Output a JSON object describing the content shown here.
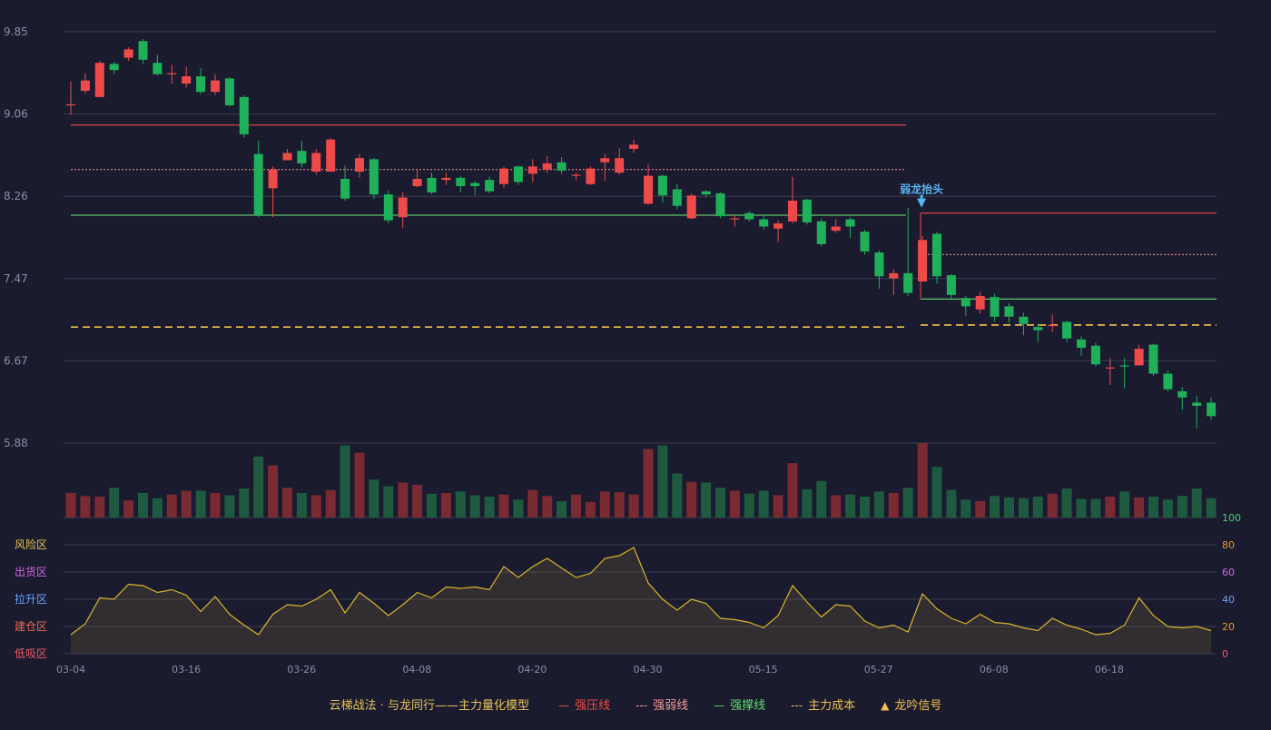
{
  "chart_data": {
    "type": "candlestick",
    "price_axis": {
      "ticks": [
        "9.85",
        "9.06",
        "8.26",
        "7.47",
        "6.67",
        "5.88"
      ],
      "min": 5.88,
      "max": 9.85
    },
    "x_axis": {
      "ticks": [
        "03-04",
        "03-16",
        "03-26",
        "04-08",
        "04-20",
        "04-30",
        "05-15",
        "05-27",
        "06-08",
        "06-18"
      ]
    },
    "candles": [
      [
        9.15,
        9.15,
        9.37,
        9.05
      ],
      [
        9.28,
        9.38,
        9.45,
        9.25
      ],
      [
        9.22,
        9.55,
        9.57,
        9.22
      ],
      [
        9.54,
        9.48,
        9.56,
        9.44
      ],
      [
        9.6,
        9.68,
        9.7,
        9.57
      ],
      [
        9.76,
        9.58,
        9.78,
        9.54
      ],
      [
        9.55,
        9.44,
        9.63,
        9.43
      ],
      [
        9.45,
        9.45,
        9.53,
        9.35
      ],
      [
        9.35,
        9.42,
        9.51,
        9.31
      ],
      [
        9.42,
        9.27,
        9.5,
        9.25
      ],
      [
        9.27,
        9.38,
        9.44,
        9.24
      ],
      [
        9.4,
        9.14,
        9.41,
        9.13
      ],
      [
        9.22,
        8.86,
        9.24,
        8.83
      ],
      [
        8.67,
        8.08,
        8.8,
        8.06
      ],
      [
        8.34,
        8.52,
        8.55,
        8.06
      ],
      [
        8.61,
        8.68,
        8.72,
        8.61
      ],
      [
        8.7,
        8.58,
        8.8,
        8.54
      ],
      [
        8.5,
        8.68,
        8.72,
        8.47
      ],
      [
        8.5,
        8.81,
        8.82,
        8.5
      ],
      [
        8.43,
        8.24,
        8.56,
        8.22
      ],
      [
        8.5,
        8.63,
        8.67,
        8.44
      ],
      [
        8.62,
        8.28,
        8.63,
        8.24
      ],
      [
        8.28,
        8.03,
        8.32,
        8.0
      ],
      [
        8.06,
        8.25,
        8.3,
        7.96
      ],
      [
        8.36,
        8.43,
        8.52,
        8.35
      ],
      [
        8.44,
        8.3,
        8.49,
        8.28
      ],
      [
        8.42,
        8.44,
        8.49,
        8.37
      ],
      [
        8.44,
        8.36,
        8.46,
        8.3
      ],
      [
        8.39,
        8.36,
        8.41,
        8.27
      ],
      [
        8.42,
        8.31,
        8.45,
        8.29
      ],
      [
        8.38,
        8.53,
        8.55,
        8.34
      ],
      [
        8.55,
        8.4,
        8.56,
        8.37
      ],
      [
        8.48,
        8.55,
        8.62,
        8.4
      ],
      [
        8.52,
        8.58,
        8.65,
        8.49
      ],
      [
        8.59,
        8.51,
        8.64,
        8.48
      ],
      [
        8.47,
        8.47,
        8.49,
        8.42
      ],
      [
        8.38,
        8.53,
        8.55,
        8.37
      ],
      [
        8.59,
        8.63,
        8.67,
        8.41
      ],
      [
        8.49,
        8.63,
        8.73,
        8.47
      ],
      [
        8.72,
        8.76,
        8.81,
        8.68
      ],
      [
        8.19,
        8.46,
        8.57,
        8.18
      ],
      [
        8.46,
        8.27,
        8.47,
        8.2
      ],
      [
        8.33,
        8.17,
        8.38,
        8.14
      ],
      [
        8.05,
        8.27,
        8.29,
        8.04
      ],
      [
        8.31,
        8.28,
        8.32,
        8.25
      ],
      [
        8.29,
        8.07,
        8.3,
        8.05
      ],
      [
        8.05,
        8.05,
        8.08,
        7.97
      ],
      [
        8.1,
        8.04,
        8.12,
        8.02
      ],
      [
        8.04,
        7.97,
        8.07,
        7.94
      ],
      [
        7.95,
        8.0,
        8.03,
        7.82
      ],
      [
        8.02,
        8.22,
        8.45,
        8.0
      ],
      [
        8.23,
        8.01,
        8.24,
        7.99
      ],
      [
        8.02,
        7.8,
        8.05,
        7.78
      ],
      [
        7.93,
        7.97,
        8.04,
        7.91
      ],
      [
        8.04,
        7.97,
        8.06,
        7.86
      ],
      [
        7.92,
        7.73,
        7.94,
        7.7
      ],
      [
        7.72,
        7.49,
        7.74,
        7.37
      ],
      [
        7.47,
        7.52,
        7.56,
        7.31
      ],
      [
        7.52,
        7.33,
        8.15,
        7.3
      ],
      [
        7.44,
        7.84,
        7.88,
        7.44
      ],
      [
        7.9,
        7.49,
        7.92,
        7.42
      ],
      [
        7.5,
        7.31,
        7.51,
        7.26
      ],
      [
        7.28,
        7.2,
        7.3,
        7.11
      ],
      [
        7.17,
        7.3,
        7.34,
        7.13
      ],
      [
        7.29,
        7.1,
        7.32,
        7.05
      ],
      [
        7.2,
        7.1,
        7.23,
        7.04
      ],
      [
        7.1,
        7.03,
        7.14,
        6.92
      ],
      [
        7.0,
        6.97,
        7.03,
        6.86
      ],
      [
        7.01,
        7.02,
        7.12,
        6.95
      ],
      [
        7.05,
        6.89,
        7.06,
        6.85
      ],
      [
        6.88,
        6.8,
        6.91,
        6.72
      ],
      [
        6.82,
        6.64,
        6.85,
        6.62
      ],
      [
        6.61,
        6.61,
        6.7,
        6.44
      ],
      [
        6.63,
        6.62,
        6.7,
        6.41
      ],
      [
        6.63,
        6.79,
        6.83,
        6.63
      ],
      [
        6.83,
        6.55,
        6.84,
        6.53
      ],
      [
        6.55,
        6.4,
        6.58,
        6.38
      ],
      [
        6.38,
        6.32,
        6.42,
        6.2
      ],
      [
        6.27,
        6.24,
        6.34,
        6.02
      ],
      [
        6.27,
        6.14,
        6.32,
        6.1
      ]
    ],
    "volumes": [
      0.33,
      0.29,
      0.28,
      0.4,
      0.23,
      0.33,
      0.26,
      0.31,
      0.36,
      0.36,
      0.33,
      0.3,
      0.39,
      0.82,
      0.7,
      0.4,
      0.33,
      0.3,
      0.37,
      0.97,
      0.87,
      0.51,
      0.42,
      0.47,
      0.44,
      0.32,
      0.33,
      0.35,
      0.3,
      0.28,
      0.31,
      0.24,
      0.37,
      0.29,
      0.22,
      0.31,
      0.21,
      0.35,
      0.34,
      0.31,
      0.92,
      0.97,
      0.59,
      0.48,
      0.47,
      0.4,
      0.36,
      0.32,
      0.36,
      0.3,
      0.73,
      0.38,
      0.49,
      0.3,
      0.31,
      0.28,
      0.35,
      0.33,
      0.4,
      1.0,
      0.68,
      0.37,
      0.24,
      0.22,
      0.29,
      0.27,
      0.26,
      0.28,
      0.32,
      0.39,
      0.25,
      0.25,
      0.28,
      0.35,
      0.27,
      0.28,
      0.24,
      0.29,
      0.39,
      0.26
    ],
    "zones": {
      "segment1": {
        "strong_pressure": 8.95,
        "strong_weak": 8.52,
        "strong_support": 8.08,
        "main_cost": 7.0
      },
      "segment2": {
        "strong_pressure": 8.1,
        "strong_weak": 7.7,
        "strong_support": 7.27,
        "main_cost": 7.02
      }
    },
    "signal": {
      "label": "弱龙抬头",
      "candle_index": 59
    },
    "indicator": {
      "left_labels": [
        {
          "text": "风险区",
          "color": "#e8c35a"
        },
        {
          "text": "出货区",
          "color": "#d36ae0"
        },
        {
          "text": "拉升区",
          "color": "#6ea3ff"
        },
        {
          "text": "建仓区",
          "color": "#ef6a52"
        },
        {
          "text": "低吸区",
          "color": "#ef5a6a"
        }
      ],
      "right_ticks": [
        {
          "text": "100",
          "color": "#3fd36a"
        },
        {
          "text": "80",
          "color": "#e89a2c"
        },
        {
          "text": "60",
          "color": "#d36ae0"
        },
        {
          "text": "40",
          "color": "#6ea3ff"
        },
        {
          "text": "20",
          "color": "#e89a2c"
        },
        {
          "text": "0",
          "color": "#ef5a6a"
        }
      ],
      "values": [
        14,
        22,
        41,
        40,
        51,
        50,
        45,
        47,
        43,
        31,
        42,
        29,
        21,
        14,
        29,
        36,
        35,
        40,
        47,
        30,
        45,
        37,
        28,
        36,
        45,
        41,
        49,
        48,
        49,
        47,
        64,
        56,
        64,
        70,
        63,
        56,
        59,
        70,
        72,
        78,
        52,
        40,
        32,
        40,
        37,
        26,
        25,
        23,
        19,
        28,
        50,
        38,
        27,
        36,
        35,
        24,
        19,
        21,
        16,
        44,
        33,
        26,
        22,
        29,
        23,
        22,
        19,
        17,
        26,
        21,
        18,
        14,
        15,
        21,
        41,
        28,
        20,
        19,
        20,
        17
      ],
      "range": [
        0,
        100
      ]
    },
    "legend": {
      "title": "云梯战法 · 与龙同行——主力量化模型",
      "items": [
        {
          "symbol": "—",
          "label": "强压线",
          "color": "#ef4a4a"
        },
        {
          "symbol": "---",
          "label": "强弱线",
          "color": "#f59a9a"
        },
        {
          "symbol": "—",
          "label": "强撑线",
          "color": "#5ee06a"
        },
        {
          "symbol": "---",
          "label": "主力成本",
          "color": "#f2c14a"
        },
        {
          "symbol": "▲",
          "label": "龙吟信号",
          "color": "#f2c14a"
        }
      ]
    },
    "colors": {
      "up": "#ef4a4a",
      "down": "#1fb15a",
      "vol_up": "#7a2a32",
      "vol_down": "#1d5a40",
      "grid": "#3a3d52",
      "axis_text": "#8a8ea3",
      "indicator_line": "#d8b52e",
      "signal": "#5ab4ef"
    }
  }
}
